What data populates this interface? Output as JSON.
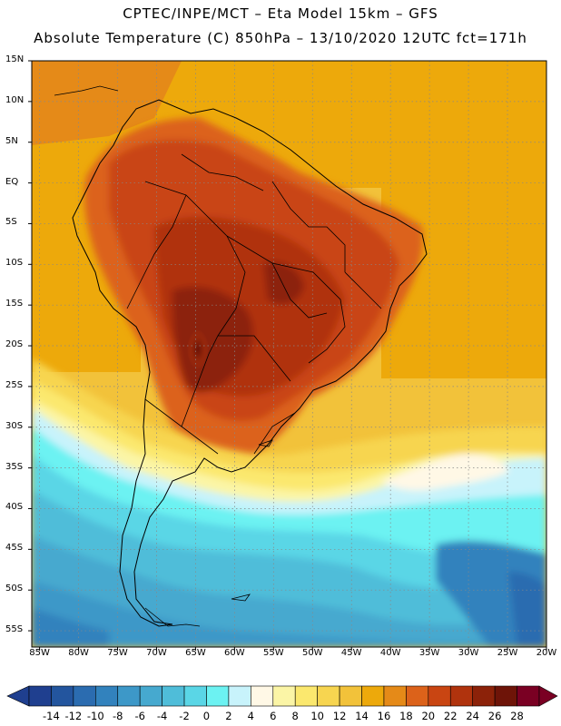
{
  "header": {
    "line1": "CPTEC/INPE/MCT –  Eta Model 15km – GFS",
    "line2": "Absolute Temperature (C) 850hPa – 13/10/2020 12UTC fct=171h"
  },
  "map": {
    "lat_labels": [
      "15N",
      "10N",
      "5N",
      "EQ",
      "5S",
      "10S",
      "15S",
      "20S",
      "25S",
      "30S",
      "35S",
      "40S",
      "45S",
      "50S",
      "55S"
    ],
    "lon_labels": [
      "85W",
      "80W",
      "75W",
      "70W",
      "65W",
      "60W",
      "55W",
      "50W",
      "45W",
      "40W",
      "35W",
      "30W",
      "25W",
      "20W"
    ],
    "lat_range": [
      15,
      -57
    ],
    "lon_range": [
      -86,
      -20
    ],
    "graticule_step_deg": 5
  },
  "colorbar": {
    "labels": [
      "-14",
      "-12",
      "-10",
      "-8",
      "-6",
      "-4",
      "-2",
      "0",
      "2",
      "4",
      "6",
      "8",
      "10",
      "12",
      "14",
      "16",
      "18",
      "20",
      "22",
      "24",
      "26",
      "28"
    ],
    "colors": [
      "#1f3f8f",
      "#23559e",
      "#2b6cb0",
      "#3282bd",
      "#3d98c8",
      "#46a9cf",
      "#4fbdd9",
      "#5ad6e6",
      "#6cf2f2",
      "#c8f3fb",
      "#fff8e6",
      "#fbf5a6",
      "#fbe86e",
      "#f7d550",
      "#f2c23a",
      "#eda90b",
      "#e58a18",
      "#dc621a",
      "#c94512",
      "#b0330d",
      "#8c2209",
      "#6e1408",
      "#7a0023"
    ],
    "under_color": "#1f3f8f",
    "over_color": "#7a0023"
  }
}
